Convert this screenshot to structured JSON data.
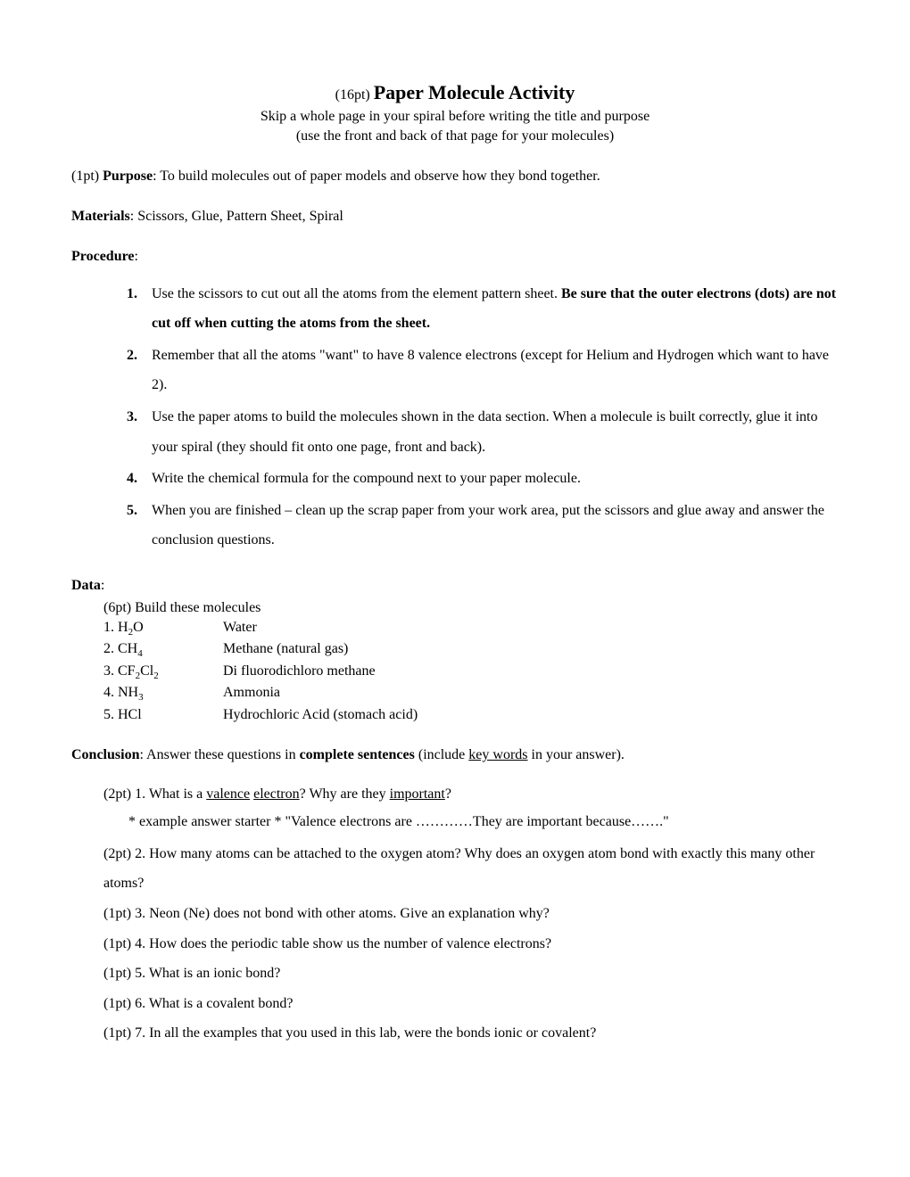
{
  "title": {
    "points": "(16pt)",
    "text": "Paper Molecule Activity"
  },
  "subtitles": {
    "line1": "Skip a whole page in your spiral before writing the title and purpose",
    "line2": "(use the front and back of that page for your molecules)"
  },
  "purpose": {
    "points": "(1pt) ",
    "label": "Purpose",
    "text": ": To build molecules out of paper models and observe how they bond together."
  },
  "materials": {
    "label": "Materials",
    "text": ": Scissors, Glue, Pattern Sheet, Spiral"
  },
  "procedure": {
    "label": "Procedure",
    "colon": ":",
    "items": [
      {
        "num": "1.",
        "prefix": "Use the scissors to cut out all the atoms from the element pattern sheet.  ",
        "bold": "Be sure that the outer electrons (dots) are not cut off when cutting the atoms from the sheet."
      },
      {
        "num": "2.",
        "text": "Remember that all the atoms \"want\" to have 8 valence electrons (except for Helium and Hydrogen which want to have 2)."
      },
      {
        "num": "3.",
        "text": "Use the paper atoms to build the molecules shown in the data section.  When a molecule is built correctly, glue it into your spiral (they should fit onto one page, front and back)."
      },
      {
        "num": "4.",
        "text": "Write the chemical formula for the compound next to your paper molecule."
      },
      {
        "num": "5.",
        "text": "When you are finished – clean up the scrap paper from your work area, put the scissors and glue away and answer the conclusion questions."
      }
    ]
  },
  "data": {
    "label": "Data",
    "colon": ":",
    "heading": "(6pt) Build these molecules",
    "molecules": [
      {
        "num": "1. ",
        "formula_base": "H",
        "formula_sub": "2",
        "formula_suffix": "O",
        "name": "Water"
      },
      {
        "num": "2. ",
        "formula_base": "CH",
        "formula_sub": "4",
        "formula_suffix": "",
        "name": "Methane (natural gas)"
      },
      {
        "num": "3. ",
        "formula_base": "CF",
        "formula_sub": "2",
        "formula_mid": "Cl",
        "formula_sub2": "2",
        "name": "Di fluorodichloro methane"
      },
      {
        "num": "4. ",
        "formula_base": "NH",
        "formula_sub": "3",
        "formula_suffix": "",
        "name": "Ammonia"
      },
      {
        "num": "5. ",
        "formula_base": "HCl",
        "formula_sub": "",
        "formula_suffix": "",
        "name": "Hydrochloric Acid (stomach acid)"
      }
    ]
  },
  "conclusion": {
    "label": "Conclusion",
    "prefix": ": Answer these questions in ",
    "bold": "complete sentences",
    "mid": " (include ",
    "underline": "key words",
    "suffix": " in your answer).",
    "q1": {
      "prefix": "(2pt) 1. What is a ",
      "u1": "valence",
      "sp": " ",
      "u2": "electron",
      "mid": "?  Why are they ",
      "u3": "important",
      "suffix": "?"
    },
    "example": "* example answer starter * \"Valence electrons are …………They are important because…….\"",
    "q2": "(2pt) 2. How many atoms can be attached to the oxygen atom?  Why does an oxygen atom bond with exactly this many other atoms?",
    "q3": "(1pt) 3. Neon (Ne) does not bond with other atoms.  Give an explanation why?",
    "q4": "(1pt) 4. How does the periodic table show us the number of valence electrons?",
    "q5": "(1pt) 5. What is an ionic bond?",
    "q6": "(1pt) 6. What is a covalent bond?",
    "q7": "(1pt) 7. In all the examples that you used in this lab, were the bonds ionic or covalent?"
  }
}
